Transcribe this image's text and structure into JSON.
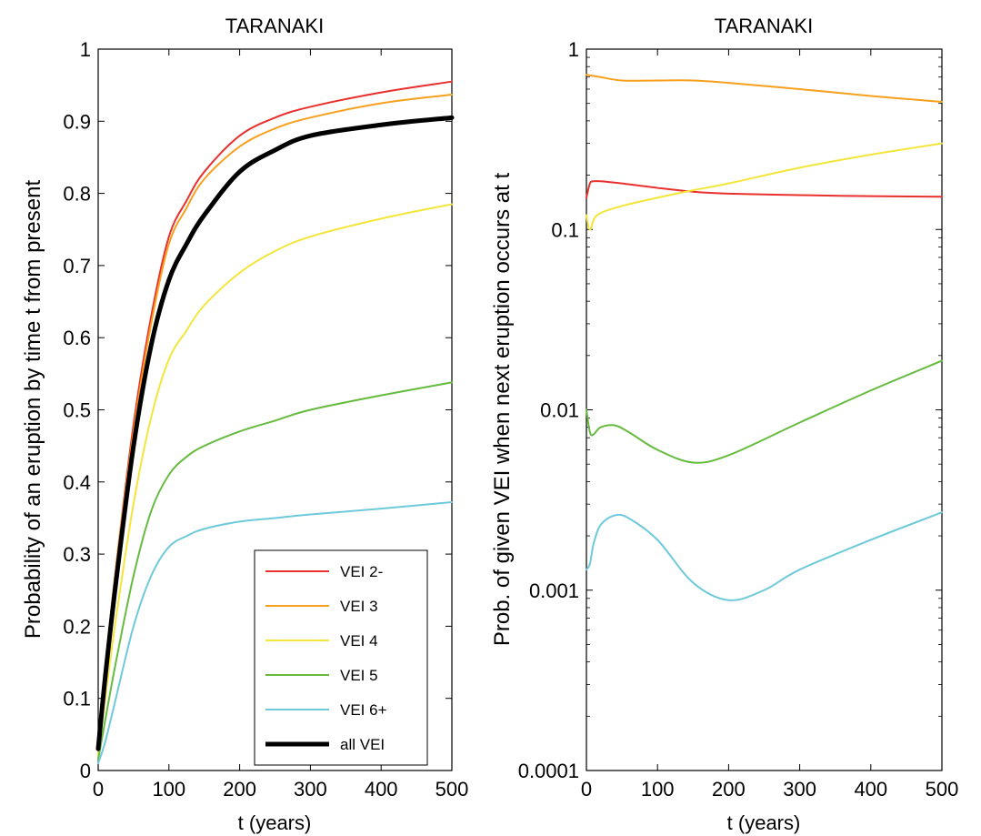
{
  "chart_data": [
    {
      "type": "line",
      "title": "TARANAKI",
      "xlabel": "t (years)",
      "ylabel": "Probability of an eruption by time t from present",
      "xlim": [
        0,
        500
      ],
      "ylim": [
        0,
        1
      ],
      "yscale": "linear",
      "xticks": [
        "0",
        "100",
        "200",
        "300",
        "400",
        "500"
      ],
      "yticks": [
        "0",
        "0.1",
        "0.2",
        "0.3",
        "0.4",
        "0.5",
        "0.6",
        "0.7",
        "0.8",
        "0.9",
        "1"
      ],
      "grid": false,
      "legend_position": "bottom-right",
      "series": [
        {
          "name": "VEI 2-",
          "color": "#e8302e",
          "width": 2,
          "x": [
            0,
            10,
            25,
            50,
            75,
            100,
            125,
            150,
            200,
            250,
            300,
            400,
            500
          ],
          "values": [
            0.03,
            0.14,
            0.28,
            0.48,
            0.63,
            0.74,
            0.79,
            0.83,
            0.88,
            0.905,
            0.92,
            0.94,
            0.955
          ]
        },
        {
          "name": "VEI 3",
          "color": "#f7a01e",
          "width": 2,
          "x": [
            0,
            10,
            25,
            50,
            75,
            100,
            125,
            150,
            200,
            250,
            300,
            400,
            500
          ],
          "values": [
            0.03,
            0.14,
            0.28,
            0.47,
            0.62,
            0.73,
            0.78,
            0.82,
            0.865,
            0.89,
            0.905,
            0.925,
            0.937
          ]
        },
        {
          "name": "VEI 4",
          "color": "#f4e53a",
          "width": 2,
          "x": [
            0,
            10,
            25,
            50,
            75,
            100,
            125,
            150,
            200,
            250,
            300,
            400,
            500
          ],
          "values": [
            0.02,
            0.1,
            0.21,
            0.37,
            0.49,
            0.57,
            0.61,
            0.645,
            0.69,
            0.72,
            0.74,
            0.765,
            0.785
          ]
        },
        {
          "name": "VEI 5",
          "color": "#66bb3f",
          "width": 2,
          "x": [
            0,
            10,
            25,
            50,
            75,
            100,
            125,
            150,
            200,
            250,
            300,
            400,
            500
          ],
          "values": [
            0.015,
            0.07,
            0.15,
            0.27,
            0.36,
            0.41,
            0.435,
            0.45,
            0.47,
            0.485,
            0.5,
            0.52,
            0.538
          ]
        },
        {
          "name": "VEI 6+",
          "color": "#6ec9da",
          "width": 2,
          "x": [
            0,
            10,
            25,
            50,
            75,
            100,
            125,
            150,
            200,
            250,
            300,
            400,
            500
          ],
          "values": [
            0.01,
            0.04,
            0.1,
            0.2,
            0.27,
            0.31,
            0.325,
            0.335,
            0.345,
            0.35,
            0.355,
            0.363,
            0.372
          ]
        },
        {
          "name": "all VEI",
          "color": "#000000",
          "width": 5,
          "x": [
            0,
            10,
            25,
            50,
            75,
            100,
            125,
            150,
            200,
            250,
            300,
            400,
            500
          ],
          "values": [
            0.03,
            0.13,
            0.26,
            0.45,
            0.59,
            0.68,
            0.73,
            0.77,
            0.83,
            0.86,
            0.88,
            0.895,
            0.905
          ]
        }
      ]
    },
    {
      "type": "line",
      "title": "TARANAKI",
      "xlabel": "t (years)",
      "ylabel": "Prob. of given VEI when next eruption occurs at t",
      "xlim": [
        0,
        500
      ],
      "ylim": [
        0.0001,
        1
      ],
      "yscale": "log",
      "xticks": [
        "0",
        "100",
        "200",
        "300",
        "400",
        "500"
      ],
      "yticks": [
        "0.0001",
        "0.001",
        "0.01",
        "0.1",
        "1"
      ],
      "grid": false,
      "series": [
        {
          "name": "VEI 2-",
          "color": "#e8302e",
          "width": 2,
          "x": [
            0,
            5,
            10,
            20,
            50,
            100,
            150,
            200,
            300,
            400,
            500
          ],
          "values": [
            0.15,
            0.18,
            0.185,
            0.185,
            0.18,
            0.17,
            0.162,
            0.158,
            0.155,
            0.153,
            0.152
          ]
        },
        {
          "name": "VEI 3",
          "color": "#f7a01e",
          "width": 2,
          "x": [
            0,
            20,
            50,
            100,
            150,
            200,
            300,
            400,
            500
          ],
          "values": [
            0.72,
            0.7,
            0.67,
            0.67,
            0.67,
            0.65,
            0.6,
            0.55,
            0.51
          ]
        },
        {
          "name": "VEI 4",
          "color": "#f4e53a",
          "width": 2,
          "x": [
            0,
            5,
            15,
            50,
            100,
            150,
            200,
            300,
            400,
            500
          ],
          "values": [
            0.12,
            0.1,
            0.12,
            0.135,
            0.15,
            0.165,
            0.18,
            0.22,
            0.26,
            0.3
          ]
        },
        {
          "name": "VEI 5",
          "color": "#66bb3f",
          "width": 2,
          "x": [
            0,
            5,
            10,
            20,
            40,
            60,
            100,
            150,
            200,
            300,
            400,
            500
          ],
          "values": [
            0.01,
            0.0075,
            0.0073,
            0.008,
            0.0082,
            0.0075,
            0.006,
            0.0051,
            0.0056,
            0.0085,
            0.0128,
            0.0187
          ]
        },
        {
          "name": "VEI 6+",
          "color": "#6ec9da",
          "width": 2,
          "x": [
            0,
            5,
            10,
            20,
            40,
            60,
            100,
            150,
            200,
            250,
            300,
            400,
            500
          ],
          "values": [
            0.0013,
            0.0014,
            0.0018,
            0.0023,
            0.0026,
            0.0025,
            0.0019,
            0.0011,
            0.00088,
            0.001,
            0.0013,
            0.0019,
            0.0027
          ]
        }
      ]
    }
  ]
}
